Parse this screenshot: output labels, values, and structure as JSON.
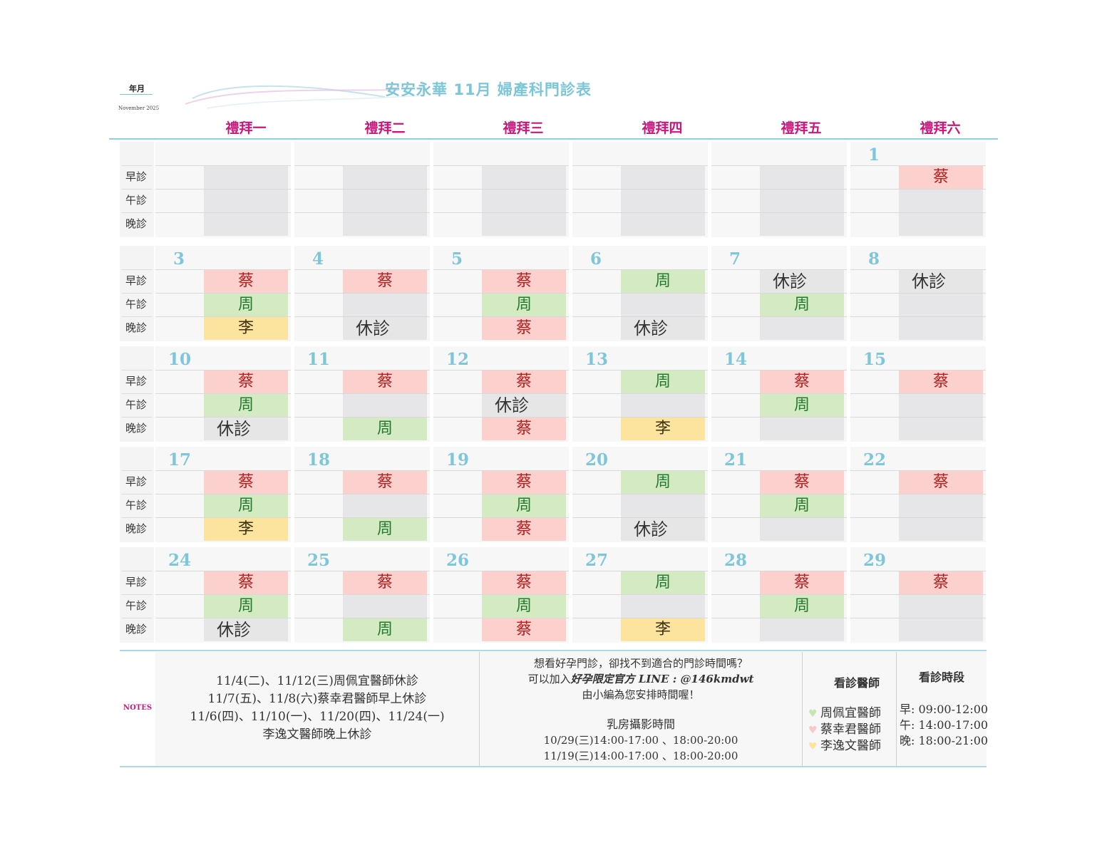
{
  "header": {
    "year_month_label": "年月",
    "month_small": "November 2025",
    "title": "安安永華 11月 婦產科門診表",
    "weekdays": [
      "禮拜一",
      "禮拜二",
      "禮拜三",
      "禮拜四",
      "禮拜五",
      "禮拜六"
    ]
  },
  "shift_labels": [
    "早診",
    "午診",
    "晚診"
  ],
  "legend_codes": {
    "cai": "蔡",
    "zhou": "周",
    "li": "李",
    "off": "休診"
  },
  "weeks": [
    [
      {
        "day": "",
        "slots": [
          "empty",
          "empty",
          "empty"
        ]
      },
      {
        "day": "",
        "slots": [
          "empty",
          "empty",
          "empty"
        ]
      },
      {
        "day": "",
        "slots": [
          "empty",
          "empty",
          "empty"
        ]
      },
      {
        "day": "",
        "slots": [
          "empty",
          "empty",
          "empty"
        ]
      },
      {
        "day": "",
        "slots": [
          "empty",
          "empty",
          "empty"
        ]
      },
      {
        "day": "1",
        "slots": [
          "cai",
          "empty",
          "empty"
        ]
      }
    ],
    [
      {
        "day": "3",
        "slots": [
          "cai",
          "zhou",
          "li"
        ]
      },
      {
        "day": "4",
        "slots": [
          "cai",
          "empty",
          "off"
        ]
      },
      {
        "day": "5",
        "slots": [
          "cai",
          "zhou",
          "cai"
        ]
      },
      {
        "day": "6",
        "slots": [
          "zhou",
          "empty",
          "off"
        ]
      },
      {
        "day": "7",
        "slots": [
          "off",
          "zhou",
          "empty"
        ]
      },
      {
        "day": "8",
        "slots": [
          "off",
          "empty",
          "empty"
        ]
      }
    ],
    [
      {
        "day": "10",
        "slots": [
          "cai",
          "zhou",
          "off"
        ]
      },
      {
        "day": "11",
        "slots": [
          "cai",
          "empty",
          "zhou"
        ]
      },
      {
        "day": "12",
        "slots": [
          "cai",
          "off",
          "cai"
        ]
      },
      {
        "day": "13",
        "slots": [
          "zhou",
          "empty",
          "li"
        ]
      },
      {
        "day": "14",
        "slots": [
          "cai",
          "zhou",
          "empty"
        ]
      },
      {
        "day": "15",
        "slots": [
          "cai",
          "empty",
          "empty"
        ]
      }
    ],
    [
      {
        "day": "17",
        "slots": [
          "cai",
          "zhou",
          "li"
        ]
      },
      {
        "day": "18",
        "slots": [
          "cai",
          "empty",
          "zhou"
        ]
      },
      {
        "day": "19",
        "slots": [
          "cai",
          "zhou",
          "cai"
        ]
      },
      {
        "day": "20",
        "slots": [
          "zhou",
          "empty",
          "off"
        ]
      },
      {
        "day": "21",
        "slots": [
          "cai",
          "zhou",
          "empty"
        ]
      },
      {
        "day": "22",
        "slots": [
          "cai",
          "empty",
          "empty"
        ]
      }
    ],
    [
      {
        "day": "24",
        "slots": [
          "cai",
          "zhou",
          "off"
        ]
      },
      {
        "day": "25",
        "slots": [
          "cai",
          "empty",
          "zhou"
        ]
      },
      {
        "day": "26",
        "slots": [
          "cai",
          "zhou",
          "cai"
        ]
      },
      {
        "day": "27",
        "slots": [
          "zhou",
          "empty",
          "li"
        ]
      },
      {
        "day": "28",
        "slots": [
          "cai",
          "zhou",
          "empty"
        ]
      },
      {
        "day": "29",
        "slots": [
          "cai",
          "empty",
          "empty"
        ]
      }
    ]
  ],
  "notes": {
    "label": "NOTES",
    "lines": [
      "11/4(二)、11/12(三)周佩宜醫師休診",
      "11/7(五)、11/8(六)蔡幸君醫師早上休診",
      "11/6(四)、11/10(一)、11/20(四)、11/24(一)",
      "李逸文醫師晚上休診"
    ]
  },
  "promo": {
    "line1": "想看好孕門診，卻找不到適合的門診時間嗎？",
    "line2_prefix": "可以加入",
    "line2_bold": "好孕限定官方 LINE : @146kmdwt",
    "line3": "由小編為您安排時間喔！",
    "photo_title": "乳房攝影時間",
    "photo_line1": "10/29(三)14:00-17:00 、18:00-20:00",
    "photo_line2": "11/19(三)14:00-17:00 、18:00-20:00"
  },
  "doctors": {
    "title": "看診醫師",
    "items": [
      {
        "name": "周佩宜醫師",
        "color": "#c5e6b2"
      },
      {
        "name": "蔡幸君醫師",
        "color": "#f7c9c6"
      },
      {
        "name": "李逸文醫師",
        "color": "#fde49e"
      }
    ]
  },
  "hours": {
    "title": "看診時段",
    "items": [
      "早: 09:00-12:00",
      "午: 14:00-17:00",
      "晚: 18:00-21:00"
    ]
  }
}
